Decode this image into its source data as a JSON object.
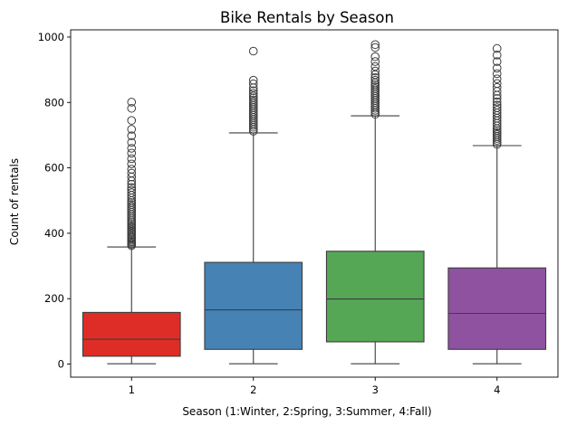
{
  "chart_data": {
    "type": "box",
    "title": "Bike Rentals by Season",
    "xlabel": "Season (1:Winter, 2:Spring, 3:Summer, 4:Fall)",
    "ylabel": "Count of rentals",
    "ylim": [
      -40,
      1022
    ],
    "yticks": [
      0,
      200,
      400,
      600,
      800,
      1000
    ],
    "grid": false,
    "legend": "none",
    "categories": [
      "1",
      "2",
      "3",
      "4"
    ],
    "boxes": [
      {
        "category": "1",
        "color": "#de2d26",
        "whisker_low": 1,
        "q1": 24,
        "median": 76,
        "q3": 158,
        "whisker_high": 358,
        "outliers": [
          362,
          366,
          370,
          374,
          378,
          382,
          386,
          390,
          395,
          400,
          405,
          410,
          415,
          420,
          425,
          430,
          435,
          440,
          446,
          452,
          458,
          464,
          470,
          476,
          482,
          488,
          494,
          500,
          508,
          516,
          524,
          532,
          540,
          550,
          560,
          572,
          584,
          596,
          612,
          628,
          645,
          660,
          678,
          698,
          718,
          745,
          782,
          801
        ]
      },
      {
        "category": "2",
        "color": "#4682b4",
        "whisker_low": 1,
        "q1": 45,
        "median": 166,
        "q3": 311,
        "whisker_high": 707,
        "outliers": [
          712,
          718,
          724,
          730,
          736,
          742,
          748,
          754,
          760,
          766,
          772,
          778,
          784,
          790,
          796,
          802,
          808,
          814,
          820,
          828,
          836,
          845,
          857,
          868,
          957
        ]
      },
      {
        "category": "3",
        "color": "#55a655",
        "whisker_low": 1,
        "q1": 68,
        "median": 199,
        "q3": 345,
        "whisker_high": 759,
        "outliers": [
          764,
          770,
          776,
          782,
          788,
          794,
          800,
          806,
          812,
          818,
          824,
          830,
          836,
          842,
          848,
          854,
          860,
          868,
          876,
          885,
          896,
          910,
          925,
          940,
          968,
          977
        ]
      },
      {
        "category": "4",
        "color": "#8e52a0",
        "whisker_low": 1,
        "q1": 45,
        "median": 155,
        "q3": 294,
        "whisker_high": 668,
        "outliers": [
          672,
          678,
          684,
          690,
          696,
          702,
          708,
          714,
          720,
          728,
          736,
          744,
          752,
          760,
          768,
          776,
          784,
          792,
          802,
          812,
          822,
          834,
          846,
          858,
          872,
          888,
          905,
          925,
          945,
          965
        ]
      }
    ]
  }
}
